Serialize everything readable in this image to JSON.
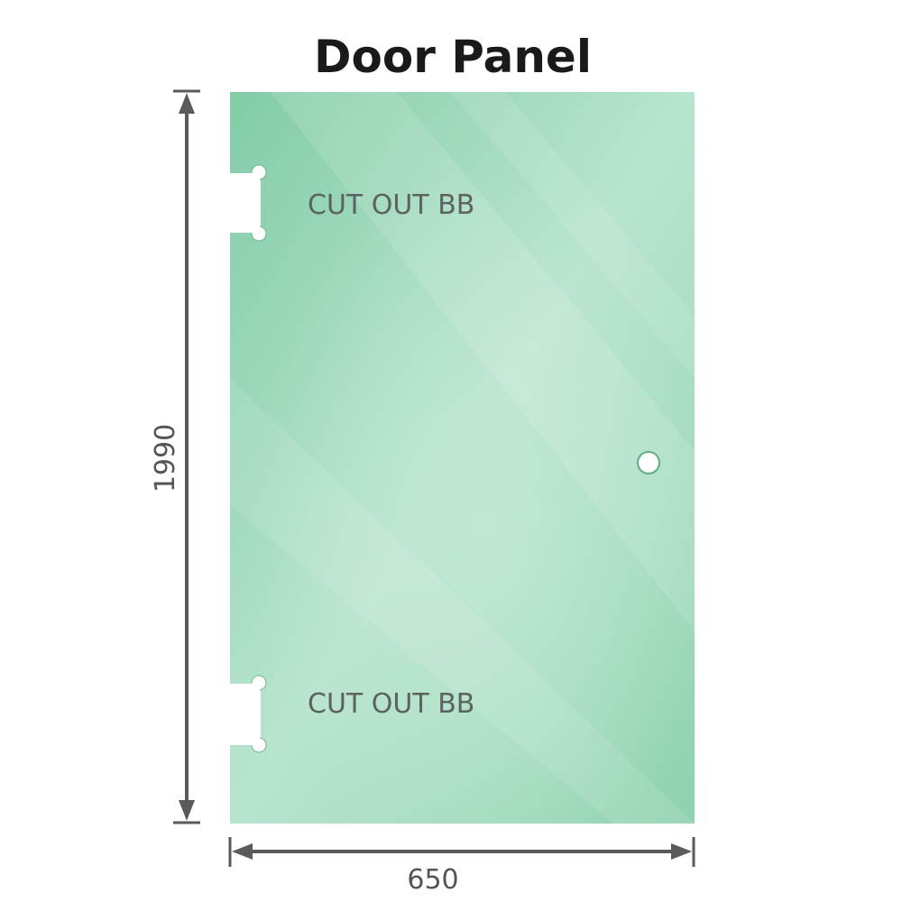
{
  "title": "Door Panel",
  "cutout_labels": [
    "CUT OUT BB",
    "CUT OUT BB"
  ],
  "dimensions": {
    "height": "1990",
    "width": "650"
  },
  "colors": {
    "glass": "#8fd0ad",
    "glass_light": "#bde6d2",
    "dimension_line": "#5a5a5a"
  }
}
